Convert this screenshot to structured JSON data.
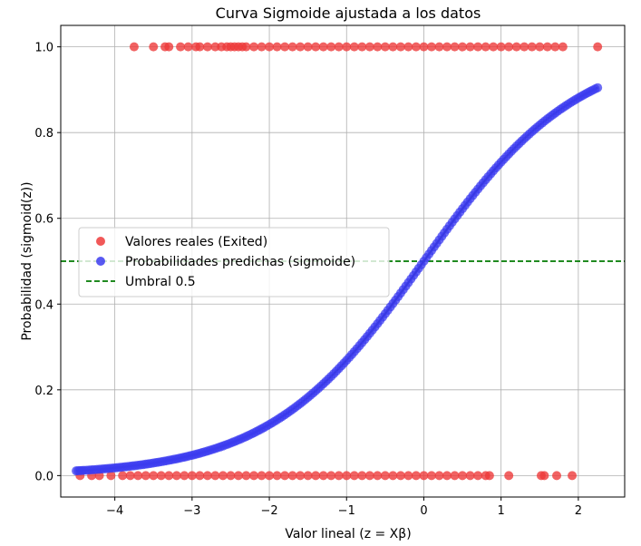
{
  "chart_data": {
    "type": "scatter",
    "title": "Curva Sigmoide ajustada a los datos",
    "xlabel": "Valor lineal (z = Xβ)",
    "ylabel": "Probabilidad (sigmoid(z))",
    "xlim": [
      -4.7,
      2.6
    ],
    "ylim": [
      -0.05,
      1.05
    ],
    "x_ticks": [
      -4,
      -3,
      -2,
      -1,
      0,
      1,
      2
    ],
    "y_ticks": [
      0.0,
      0.2,
      0.4,
      0.6,
      0.8,
      1.0
    ],
    "x_tick_labels": [
      "−4",
      "−3",
      "−2",
      "−1",
      "0",
      "1",
      "2"
    ],
    "y_tick_labels": [
      "0.0",
      "0.2",
      "0.4",
      "0.6",
      "0.8",
      "1.0"
    ],
    "grid": true,
    "legend_position": "center-left",
    "colors": {
      "real": "#ee3b3b",
      "predicted": "#3c3cf0",
      "curve": "#000000",
      "threshold": "#007a00"
    },
    "series": [
      {
        "name": "Valores reales (Exited)",
        "kind": "points",
        "y_value": 1,
        "x": [
          -3.75,
          -3.5,
          -3.35,
          -3.3,
          -3.15,
          -3.05,
          -2.95,
          -2.9,
          -2.8,
          -2.7,
          -2.62,
          -2.55,
          -2.5,
          -2.45,
          -2.4,
          -2.35,
          -2.3,
          -2.2,
          -2.1,
          -2.0,
          -1.9,
          -1.8,
          -1.7,
          -1.6,
          -1.5,
          -1.4,
          -1.3,
          -1.2,
          -1.1,
          -1.0,
          -0.9,
          -0.8,
          -0.7,
          -0.6,
          -0.5,
          -0.4,
          -0.3,
          -0.2,
          -0.1,
          0.0,
          0.1,
          0.2,
          0.3,
          0.4,
          0.5,
          0.6,
          0.7,
          0.8,
          0.9,
          1.0,
          1.1,
          1.2,
          1.3,
          1.4,
          1.5,
          1.6,
          1.7,
          1.8,
          2.25
        ]
      },
      {
        "name": "Valores reales (Exited)",
        "kind": "points",
        "y_value": 0,
        "x": [
          -4.45,
          -4.3,
          -4.2,
          -4.05,
          -3.9,
          -3.8,
          -3.7,
          -3.6,
          -3.5,
          -3.4,
          -3.3,
          -3.2,
          -3.1,
          -3.0,
          -2.9,
          -2.8,
          -2.7,
          -2.6,
          -2.5,
          -2.4,
          -2.3,
          -2.2,
          -2.1,
          -2.0,
          -1.9,
          -1.8,
          -1.7,
          -1.6,
          -1.5,
          -1.4,
          -1.3,
          -1.2,
          -1.1,
          -1.0,
          -0.9,
          -0.8,
          -0.7,
          -0.6,
          -0.5,
          -0.4,
          -0.3,
          -0.2,
          -0.1,
          0.0,
          0.1,
          0.2,
          0.3,
          0.4,
          0.5,
          0.6,
          0.7,
          0.8,
          0.85,
          1.1,
          1.52,
          1.56,
          1.72,
          1.92
        ]
      },
      {
        "name": "Probabilidades predichas (sigmoide)",
        "kind": "points",
        "function": "sigmoid",
        "x": [
          -4.5,
          -4.45,
          -4.4,
          -4.3,
          -4.2,
          -4.1,
          -4.0,
          -3.9,
          -3.8,
          -3.7,
          -3.6,
          -3.5,
          -3.4,
          -3.3,
          -3.2,
          -3.1,
          -3.0,
          -2.9,
          -2.8,
          -2.7,
          -2.6,
          -2.5,
          -2.4,
          -2.3,
          -2.2,
          -2.1,
          -2.0,
          -1.9,
          -1.8,
          -1.7,
          -1.6,
          -1.5,
          -1.4,
          -1.3,
          -1.2,
          -1.1,
          -1.0,
          -0.9,
          -0.8,
          -0.7,
          -0.6,
          -0.5,
          -0.4,
          -0.3,
          -0.2,
          -0.1,
          0.0,
          0.1,
          0.2,
          0.3,
          0.4,
          0.5,
          0.6,
          0.7,
          0.8,
          0.9,
          1.0,
          1.1,
          1.2,
          1.3,
          1.4,
          1.5,
          1.6,
          1.7,
          1.8,
          1.9,
          2.0,
          2.25
        ]
      },
      {
        "name": "",
        "kind": "line",
        "function": "sigmoid",
        "x_range": [
          -4.5,
          2.25
        ]
      },
      {
        "name": "Umbral 0.5",
        "kind": "hline",
        "y_value": 0.5
      }
    ],
    "legend": [
      {
        "label": "Valores reales (Exited)",
        "marker": "circle",
        "color": "#ee3b3b"
      },
      {
        "label": "Probabilidades predichas (sigmoide)",
        "marker": "circle",
        "color": "#3c3cf0"
      },
      {
        "label": "Umbral 0.5",
        "marker": "dashed-line",
        "color": "#007a00"
      }
    ]
  }
}
